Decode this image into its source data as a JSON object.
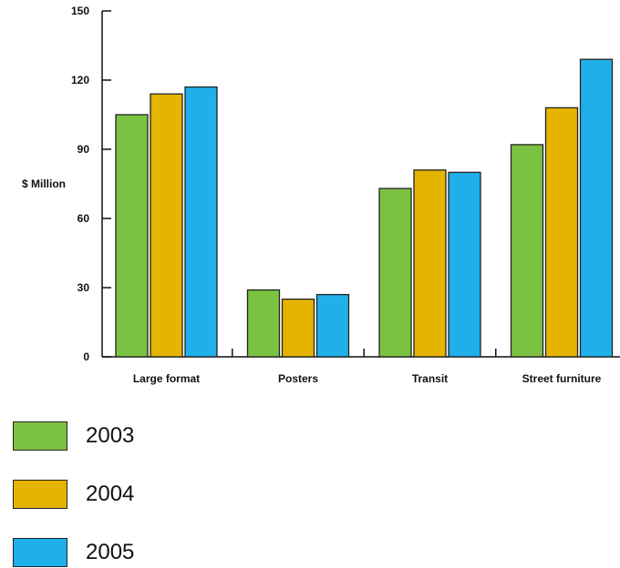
{
  "chart_data": {
    "type": "bar",
    "title": "",
    "xlabel": "",
    "ylabel": "$ Million",
    "ylim": [
      0,
      150
    ],
    "yticks": [
      0,
      30,
      60,
      90,
      120,
      150
    ],
    "categories": [
      "Large format",
      "Posters",
      "Transit",
      "Street furniture"
    ],
    "series": [
      {
        "name": "2003",
        "color": "#7cc242",
        "values": [
          105,
          29,
          73,
          92
        ]
      },
      {
        "name": "2004",
        "color": "#e5b400",
        "values": [
          114,
          25,
          81,
          108
        ]
      },
      {
        "name": "2005",
        "color": "#1fb0ea",
        "values": [
          117,
          27,
          80,
          129
        ]
      }
    ],
    "grid": false,
    "legend_position": "bottom-left"
  }
}
